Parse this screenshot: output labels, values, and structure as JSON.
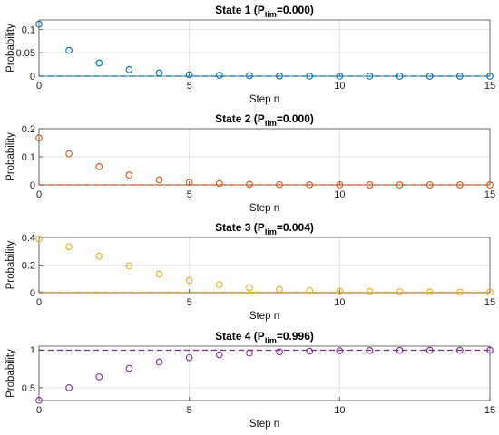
{
  "chart_data": [
    {
      "type": "scatter",
      "title_main": "State 1 (P",
      "title_sub": "lim",
      "title_tail": "=0.000)",
      "xlabel": "Step n",
      "ylabel": "Probability",
      "xlim": [
        0,
        15
      ],
      "ylim": [
        0,
        0.12
      ],
      "xticks": [
        "0",
        "5",
        "10",
        "15"
      ],
      "yticks": [
        "0",
        "0.05",
        "0.1"
      ],
      "ytick_values": [
        0,
        0.05,
        0.1
      ],
      "grid": true,
      "color": "#0072BD",
      "limit": 0.0,
      "series": [
        {
          "x": [
            0,
            1,
            2,
            3,
            4,
            5,
            6,
            7,
            8,
            9,
            10,
            11,
            12,
            13,
            14,
            15
          ],
          "y": [
            0.111,
            0.055,
            0.028,
            0.014,
            0.007,
            0.003,
            0.002,
            0.001,
            0.0005,
            0.0002,
            0.0001,
            0.0001,
            0,
            0,
            0,
            0
          ]
        }
      ]
    },
    {
      "type": "scatter",
      "title_main": "State 2 (P",
      "title_sub": "lim",
      "title_tail": "=0.000)",
      "xlabel": "Step n",
      "ylabel": "Probability",
      "xlim": [
        0,
        15
      ],
      "ylim": [
        0,
        0.2
      ],
      "xticks": [
        "0",
        "5",
        "10",
        "15"
      ],
      "yticks": [
        "0",
        "0.1",
        "0.2"
      ],
      "ytick_values": [
        0,
        0.1,
        0.2
      ],
      "grid": true,
      "color": "#D95319",
      "limit": 0.0,
      "series": [
        {
          "x": [
            0,
            1,
            2,
            3,
            4,
            5,
            6,
            7,
            8,
            9,
            10,
            11,
            12,
            13,
            14,
            15
          ],
          "y": [
            0.167,
            0.111,
            0.065,
            0.035,
            0.018,
            0.009,
            0.005,
            0.002,
            0.001,
            0.0006,
            0.0003,
            0.0001,
            0.0001,
            0,
            0,
            0
          ]
        }
      ]
    },
    {
      "type": "scatter",
      "title_main": "State 3 (P",
      "title_sub": "lim",
      "title_tail": "=0.004)",
      "xlabel": "Step n",
      "ylabel": "Probability",
      "xlim": [
        0,
        15
      ],
      "ylim": [
        0,
        0.4
      ],
      "xticks": [
        "0",
        "5",
        "10",
        "15"
      ],
      "yticks": [
        "0",
        "0.2",
        "0.4"
      ],
      "ytick_values": [
        0,
        0.2,
        0.4
      ],
      "grid": true,
      "color": "#EDB120",
      "limit": 0.004,
      "series": [
        {
          "x": [
            0,
            1,
            2,
            3,
            4,
            5,
            6,
            7,
            8,
            9,
            10,
            11,
            12,
            13,
            14,
            15
          ],
          "y": [
            0.389,
            0.333,
            0.264,
            0.194,
            0.134,
            0.089,
            0.058,
            0.037,
            0.024,
            0.016,
            0.011,
            0.008,
            0.006,
            0.005,
            0.0045,
            0.004
          ]
        }
      ]
    },
    {
      "type": "scatter",
      "title_main": "State 4 (P",
      "title_sub": "lim",
      "title_tail": "=0.996)",
      "xlabel": "Step n",
      "ylabel": "Probability",
      "xlim": [
        0,
        15
      ],
      "ylim": [
        0.33,
        1.05
      ],
      "xticks": [
        "0",
        "5",
        "10",
        "15"
      ],
      "yticks": [
        "0.5",
        "1"
      ],
      "ytick_values": [
        0.5,
        1
      ],
      "grid": true,
      "color": "#7E2F8E",
      "limit": 0.996,
      "series": [
        {
          "x": [
            0,
            1,
            2,
            3,
            4,
            5,
            6,
            7,
            8,
            9,
            10,
            11,
            12,
            13,
            14,
            15
          ],
          "y": [
            0.333,
            0.5,
            0.643,
            0.757,
            0.84,
            0.898,
            0.935,
            0.959,
            0.974,
            0.983,
            0.989,
            0.992,
            0.994,
            0.995,
            0.9955,
            0.996
          ]
        }
      ]
    }
  ]
}
